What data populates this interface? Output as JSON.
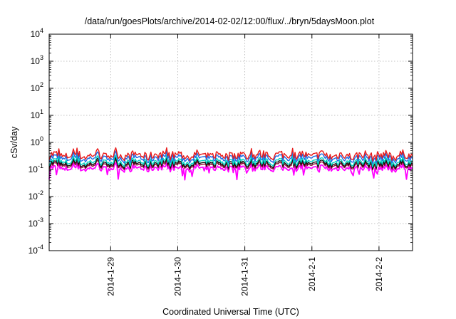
{
  "chart_data": {
    "type": "line",
    "title": "/data/run/goesPlots/archive/2014-02-02/12:00/flux/../bryn/5daysMoon.plot",
    "xlabel": "Coordinated Universal Time (UTC)",
    "ylabel": "cSv/day",
    "yscale": "log",
    "ylim": [
      0.0001,
      10000
    ],
    "xlim": [
      "2014-01-28 02:00",
      "2014-02-02 12:00"
    ],
    "grid": true,
    "legend": "none",
    "y_ticks": [
      {
        "base": "10",
        "exp": "-4"
      },
      {
        "base": "10",
        "exp": "-3"
      },
      {
        "base": "10",
        "exp": "-2"
      },
      {
        "base": "10",
        "exp": "-1"
      },
      {
        "base": "10",
        "exp": "0"
      },
      {
        "base": "10",
        "exp": "1"
      },
      {
        "base": "10",
        "exp": "2"
      },
      {
        "base": "10",
        "exp": "3"
      },
      {
        "base": "10",
        "exp": "4"
      }
    ],
    "x_ticks": [
      "2014-1-29",
      "2014-1-30",
      "2014-1-31",
      "2014-2-1",
      "2014-2-2"
    ],
    "series_levels": [
      {
        "color": "#ff00ff",
        "level": 0.11
      },
      {
        "color": "#8a0a2e",
        "level": 0.14
      },
      {
        "color": "#111111",
        "level": 0.16
      },
      {
        "color": "#00d3c2",
        "level": 0.19
      },
      {
        "color": "#1e6ae6",
        "level": 0.26
      },
      {
        "color": "#e81a1a",
        "level": 0.33
      }
    ]
  }
}
